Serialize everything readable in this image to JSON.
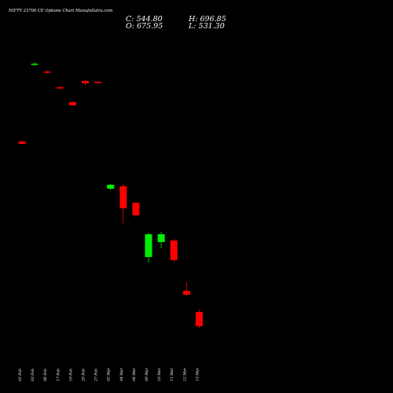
{
  "chart_data": {
    "type": "candlestick",
    "title": "NIFTY 23700 CE Options Chart MunafaSutra.com",
    "ohlc_readout": {
      "close": "C: 544.80",
      "open": "O: 675.95",
      "high": "H: 696.85",
      "low": "L: 531.30"
    },
    "categories": [
      "02 Feb",
      "03 Feb",
      "06 Feb",
      "17 Feb",
      "19 Feb",
      "20 Feb",
      "27 Feb",
      "02 Mar",
      "04 Mar",
      "06 Mar",
      "09 Mar",
      "10 Mar",
      "11 Mar",
      "12 Mar",
      "13 Mar"
    ],
    "x_tick_labels": [
      "02 Feb",
      "03 Feb",
      "06 Feb",
      "17 Feb",
      "19 Feb",
      "20 Feb",
      "27 Feb",
      "02 Mar",
      "04 Mar",
      "06 Mar",
      "09 Mar",
      "10 Mar",
      "11 Mar",
      "12 Mar",
      "13 Mar"
    ],
    "candles": [
      {
        "open": 1040,
        "high": 1041,
        "low": 1036,
        "close": 1037
      },
      {
        "open": 1138,
        "high": 1141,
        "low": 1136,
        "close": 1139
      },
      {
        "open": 1129,
        "high": 1131,
        "low": 1126,
        "close": 1128
      },
      {
        "open": 1109,
        "high": 1111,
        "low": 1106,
        "close": 1108
      },
      {
        "open": 1090,
        "high": 1091,
        "low": 1085,
        "close": 1086
      },
      {
        "open": 1117,
        "high": 1118,
        "low": 1111,
        "close": 1114
      },
      {
        "open": 1116,
        "high": 1117,
        "low": 1114,
        "close": 1115
      },
      {
        "open": 980,
        "high": 986,
        "low": 978,
        "close": 985
      },
      {
        "open": 983,
        "high": 986,
        "low": 936,
        "close": 955
      },
      {
        "open": 962,
        "high": 963,
        "low": 944,
        "close": 946
      },
      {
        "open": 893,
        "high": 924,
        "low": 886,
        "close": 922
      },
      {
        "open": 912,
        "high": 925,
        "low": 904,
        "close": 922
      },
      {
        "open": 914,
        "high": 916,
        "low": 887,
        "close": 889
      },
      {
        "open": 850,
        "high": 861,
        "low": 844,
        "close": 845
      },
      {
        "open": 823,
        "high": 826,
        "low": 803,
        "close": 805
      }
    ],
    "overlay_lines": [
      {
        "color": "#00ee00",
        "values": [
          2330,
          2330,
          2390,
          2380,
          2365,
          2355,
          2372,
          2372,
          2298,
          2285,
          2280,
          2262,
          2267,
          2244,
          2230,
          2205
        ]
      },
      {
        "color": "#cc00cc",
        "values": [
          2228,
          2228,
          2240,
          2222,
          2224,
          2225,
          2200,
          2172,
          2138,
          2162,
          2138,
          2102,
          2120,
          2090,
          2071,
          2030
        ]
      }
    ],
    "bullish_color": "#00ee00",
    "bearish_color": "#ff0000",
    "grid": false,
    "background": "#000000"
  }
}
